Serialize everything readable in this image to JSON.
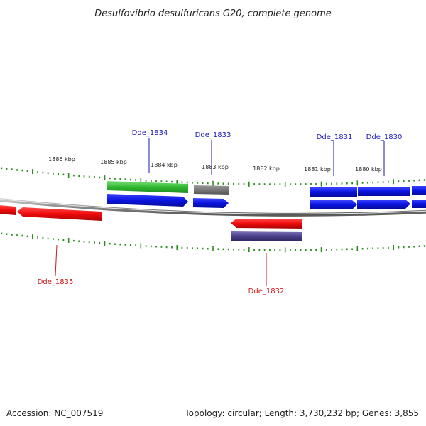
{
  "title": "Desulfovibrio desulfuricans G20, complete genome",
  "accession": "Accession: NC_007519",
  "summary": "Topology: circular; Length: 3,730,232 bp; Genes: 3,855",
  "colors": {
    "tick": "#2e8b22",
    "backbone": "#8a8a8a",
    "forward_gene": "#0a14e0",
    "reverse_gene": "#ee0a0a",
    "green_feature": "#2fb82f",
    "gray_feature": "#777777",
    "purple_feature": "#4a3f8a",
    "forward_label": "#1a1ab8",
    "reverse_label": "#cc1a1a"
  },
  "kbp_labels": [
    "1886 kbp",
    "1885 kbp",
    "1884 kbp",
    "1883 kbp",
    "1882 kbp",
    "1881 kbp",
    "1880 kbp"
  ],
  "gene_labels": {
    "dde_1834": "Dde_1834",
    "dde_1833": "Dde_1833",
    "dde_1831": "Dde_1831",
    "dde_1830": "Dde_1830",
    "dde_1835": "Dde_1835",
    "dde_1832": "Dde_1832"
  }
}
